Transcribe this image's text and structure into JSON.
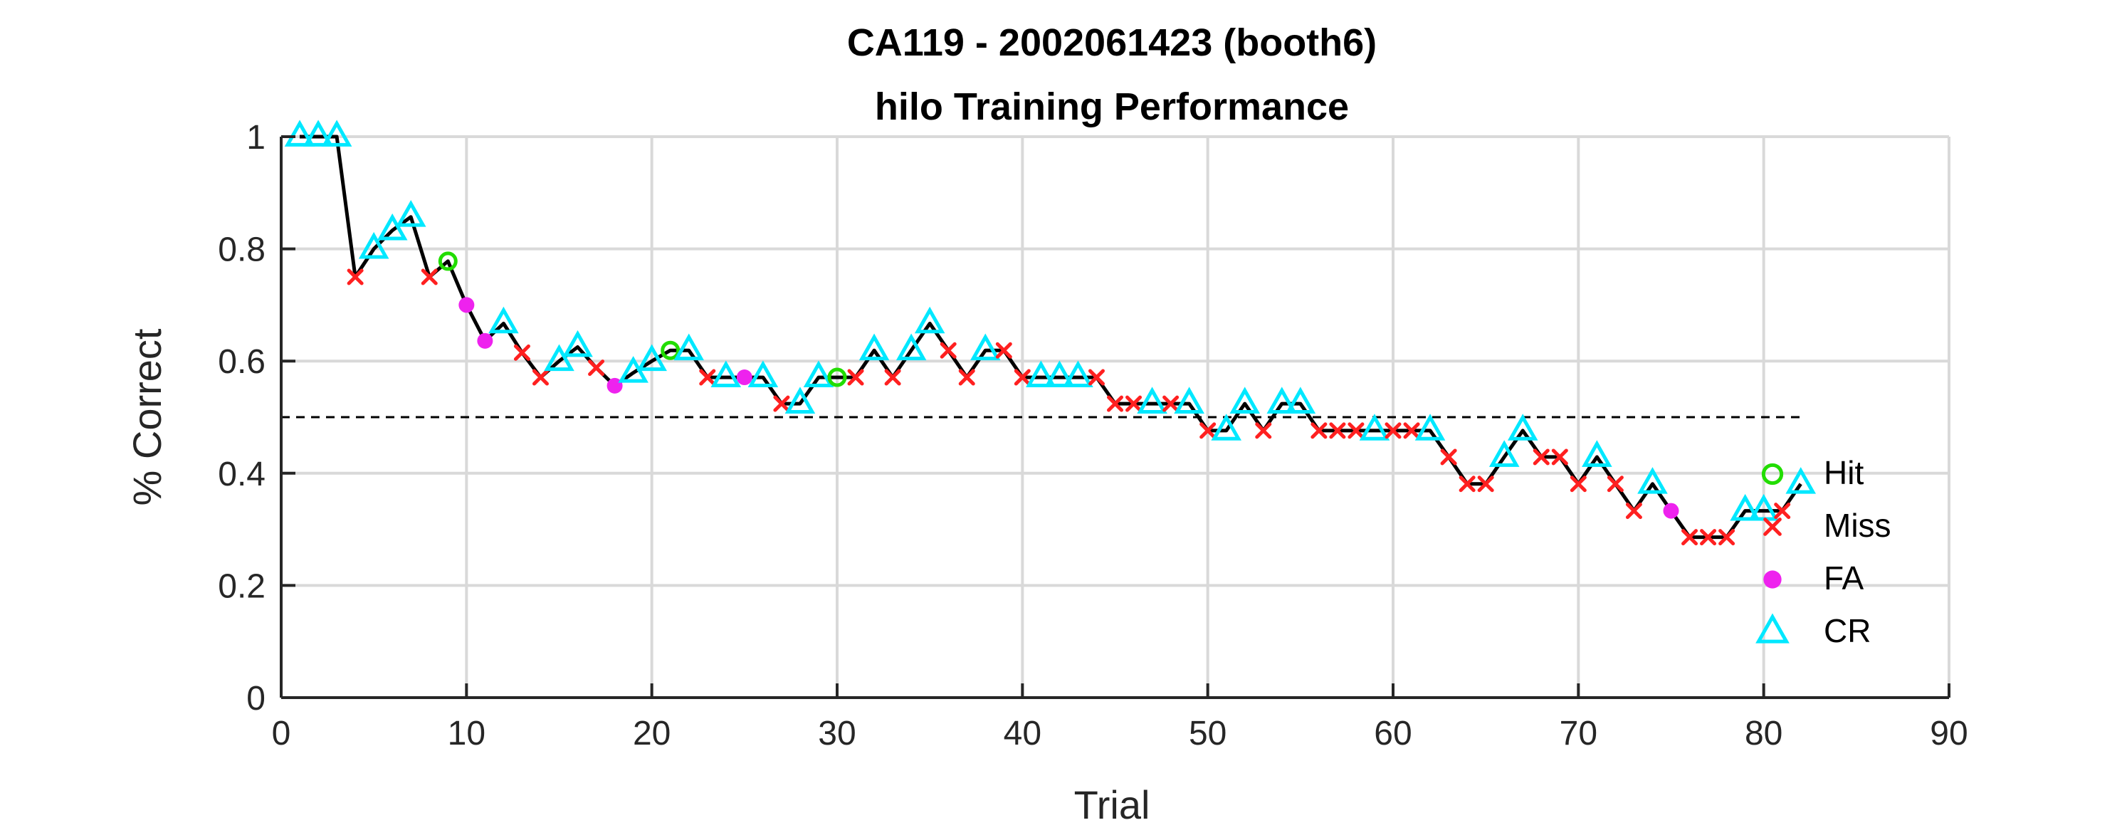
{
  "chart_data": {
    "type": "line",
    "title": [
      "CA119 - 2002061423 (booth6)",
      "hilo Training Performance"
    ],
    "xlabel": "Trial",
    "ylabel": "% Correct",
    "xlim": [
      0,
      90
    ],
    "ylim": [
      0,
      1
    ],
    "xticks": [
      0,
      10,
      20,
      30,
      40,
      50,
      60,
      70,
      80,
      90
    ],
    "yticks": [
      0,
      0.2,
      0.4,
      0.6,
      0.8,
      1
    ],
    "xtick_labels": [
      "0",
      "10",
      "20",
      "30",
      "40",
      "50",
      "60",
      "70",
      "80",
      "90"
    ],
    "ytick_labels": [
      "0",
      "0.2",
      "0.4",
      "0.6",
      "0.8",
      "1"
    ],
    "grid": true,
    "chance_level": 0.5,
    "chance_x_range": [
      0,
      82
    ],
    "legend_position": "right",
    "x": [
      1,
      2,
      3,
      4,
      5,
      6,
      7,
      8,
      9,
      10,
      11,
      12,
      13,
      14,
      15,
      16,
      17,
      18,
      19,
      20,
      21,
      22,
      23,
      24,
      25,
      26,
      27,
      28,
      29,
      30,
      31,
      32,
      33,
      34,
      35,
      36,
      37,
      38,
      39,
      40,
      41,
      42,
      43,
      44,
      45,
      46,
      47,
      48,
      49,
      50,
      51,
      52,
      53,
      54,
      55,
      56,
      57,
      58,
      59,
      60,
      61,
      62,
      63,
      64,
      65,
      66,
      67,
      68,
      69,
      70,
      71,
      72,
      73,
      74,
      75,
      76,
      77,
      78,
      79,
      80,
      81,
      82
    ],
    "values": [
      1,
      1,
      1,
      0.75,
      0.8,
      0.833,
      0.857,
      0.75,
      0.778,
      0.7,
      0.636,
      0.667,
      0.615,
      0.571,
      0.6,
      0.625,
      0.588,
      0.556,
      0.579,
      0.6,
      0.619,
      0.619,
      0.571,
      0.571,
      0.571,
      0.571,
      0.524,
      0.524,
      0.571,
      0.571,
      0.571,
      0.619,
      0.571,
      0.619,
      0.667,
      0.619,
      0.571,
      0.619,
      0.619,
      0.571,
      0.571,
      0.571,
      0.571,
      0.571,
      0.524,
      0.524,
      0.524,
      0.524,
      0.524,
      0.476,
      0.476,
      0.524,
      0.476,
      0.524,
      0.524,
      0.476,
      0.476,
      0.476,
      0.476,
      0.476,
      0.476,
      0.476,
      0.429,
      0.381,
      0.381,
      0.429,
      0.476,
      0.429,
      0.429,
      0.381,
      0.429,
      0.381,
      0.333,
      0.381,
      0.333,
      0.286,
      0.286,
      0.286,
      0.333,
      0.333,
      0.333,
      0.381
    ],
    "outcomes": [
      "CR",
      "CR",
      "CR",
      "Miss",
      "CR",
      "CR",
      "CR",
      "Miss",
      "Hit",
      "FA",
      "FA",
      "CR",
      "Miss",
      "Miss",
      "CR",
      "CR",
      "Miss",
      "FA",
      "CR",
      "CR",
      "Hit",
      "CR",
      "Miss",
      "CR",
      "FA",
      "CR",
      "Miss",
      "CR",
      "CR",
      "Hit",
      "Miss",
      "CR",
      "Miss",
      "CR",
      "CR",
      "Miss",
      "Miss",
      "CR",
      "Miss",
      "Miss",
      "CR",
      "CR",
      "CR",
      "Miss",
      "Miss",
      "Miss",
      "CR",
      "Miss",
      "CR",
      "Miss",
      "CR",
      "CR",
      "Miss",
      "CR",
      "CR",
      "Miss",
      "Miss",
      "Miss",
      "CR",
      "Miss",
      "Miss",
      "CR",
      "Miss",
      "Miss",
      "Miss",
      "CR",
      "CR",
      "Miss",
      "Miss",
      "Miss",
      "CR",
      "Miss",
      "Miss",
      "CR",
      "FA",
      "Miss",
      "Miss",
      "Miss",
      "CR",
      "CR",
      "Miss",
      "CR"
    ],
    "series": [
      {
        "name": "Hit",
        "marker": "circle-open",
        "color": "#22dd00"
      },
      {
        "name": "Miss",
        "marker": "x",
        "color": "#ff2020"
      },
      {
        "name": "FA",
        "marker": "dot",
        "color": "#ee22ee"
      },
      {
        "name": "CR",
        "marker": "triangle-open",
        "color": "#00e8ff"
      }
    ],
    "line_color": "#000000"
  }
}
